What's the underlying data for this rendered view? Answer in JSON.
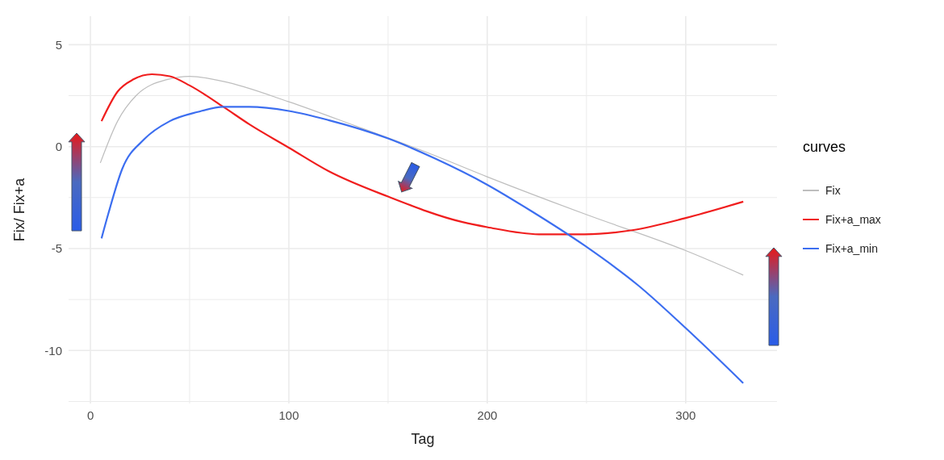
{
  "chart_data": {
    "type": "line",
    "xlabel": "Tag",
    "ylabel": "Fix/ Fix+a",
    "legend_title": "curves",
    "legend": "right",
    "grid": true,
    "line_style": "solid",
    "xlim": [
      -11,
      346
    ],
    "ylim": [
      -12.6,
      6.4
    ],
    "xticks": [
      0,
      {
        "value": 50,
        "label": null
      },
      100,
      {
        "value": 150,
        "label": null
      },
      200,
      {
        "value": 250,
        "label": null
      },
      300
    ],
    "yticks": [
      {
        "value": -12.5,
        "label": null
      },
      -10,
      {
        "value": -7.5,
        "label": null
      },
      -5,
      {
        "value": -2.5,
        "label": null
      },
      0,
      {
        "value": 2.5,
        "label": null
      },
      5
    ],
    "series": [
      {
        "name": "Fix",
        "color": "#bebebe",
        "x": [
          5,
          13.7,
          23,
          39,
          50,
          67,
          100,
          134,
          170,
          200,
          249,
          300,
          329
        ],
        "values": [
          -0.8,
          1.25,
          2.5,
          3.3,
          3.45,
          3.2,
          2.2,
          1.0,
          -0.3,
          -1.48,
          -3.3,
          -5.1,
          -6.3
        ]
      },
      {
        "name": "Fix+a_max",
        "color": "#f01e1e",
        "x": [
          5.6,
          13.7,
          21.7,
          31,
          40,
          50,
          67,
          80,
          100,
          120,
          150,
          187.5,
          200,
          226,
          249,
          273,
          300,
          329
        ],
        "values": [
          1.25,
          2.7,
          3.3,
          3.55,
          3.45,
          3.0,
          1.95,
          1.1,
          -0.05,
          -1.2,
          -2.45,
          -3.7,
          -3.95,
          -4.3,
          -4.3,
          -4.1,
          -3.5,
          -2.7
        ]
      },
      {
        "name": "Fix+a_min",
        "color": "#3c6ef0",
        "x": [
          5.6,
          9,
          16,
          27,
          40,
          54,
          67,
          80,
          100,
          120,
          150,
          174,
          200,
          222,
          249,
          276,
          300,
          329
        ],
        "values": [
          -4.5,
          -3.3,
          -1.1,
          0.35,
          1.25,
          1.7,
          1.95,
          1.95,
          1.75,
          1.3,
          0.4,
          -0.6,
          -1.87,
          -3.15,
          -4.85,
          -6.8,
          -8.9,
          -11.6
        ]
      }
    ]
  }
}
